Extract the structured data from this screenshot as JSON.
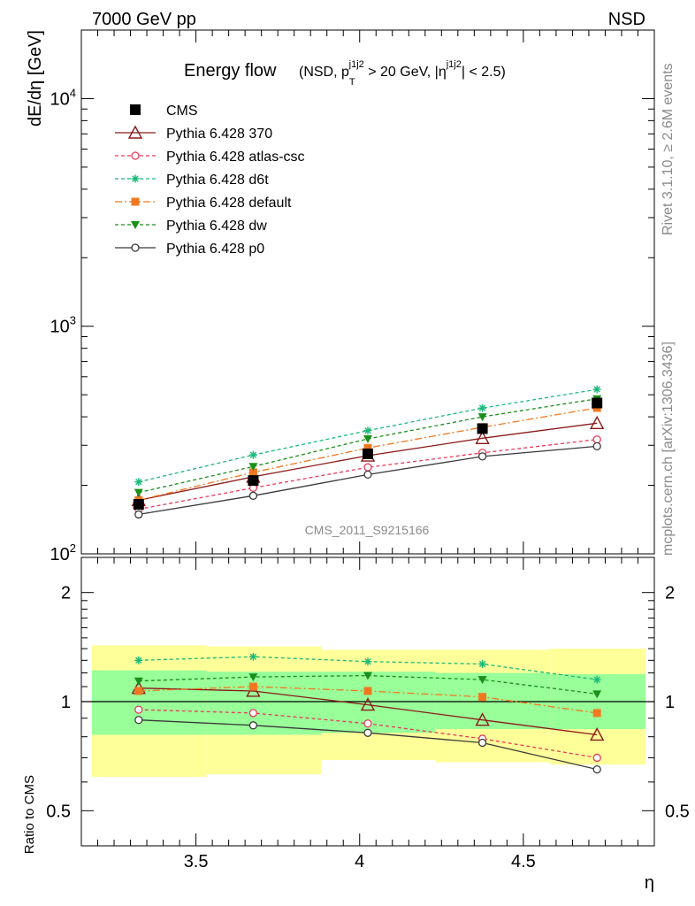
{
  "header": {
    "left": "7000 GeV pp",
    "right": "NSD",
    "title_main": "Energy flow",
    "title_detail": "(NSD, p_T^{j1j2} > 20 GeV, |η^{j1j2}| < 2.5)",
    "watermark": "CMS_2011_S9215166",
    "side_rivet": "Rivet 3.1.10, ≥ 2.6M events",
    "side_mcplots": "mcplots.cern.ch [arXiv:1306.3436]"
  },
  "chart_data": [
    {
      "type": "line",
      "panel": "main",
      "xlabel": "η",
      "ylabel": "dE/dη [GeV]",
      "yscale": "log",
      "xlim": [
        3.15,
        4.9
      ],
      "ylim": [
        100,
        20000
      ],
      "x": [
        3.325,
        3.675,
        4.025,
        4.375,
        4.725
      ],
      "x_edges": [
        3.15,
        3.5,
        3.85,
        4.2,
        4.55,
        4.9
      ],
      "yticks": [
        100,
        1000,
        10000
      ],
      "ytick_labels": [
        "10^2",
        "10^3",
        "10^4"
      ],
      "legend_position": "top-left",
      "series": [
        {
          "name": "CMS",
          "values": [
            165,
            210,
            275,
            355,
            460
          ],
          "color": "#000000",
          "marker": "square",
          "dash": "none"
        },
        {
          "name": "Pythia 6.428 370",
          "values": [
            172,
            218,
            270,
            322,
            375
          ],
          "color": "#8b1a1a",
          "marker": "triangle-open",
          "dash": "none"
        },
        {
          "name": "Pythia 6.428 atlas-csc",
          "values": [
            157,
            195,
            240,
            278,
            318
          ],
          "color": "#e8395a",
          "marker": "circle-open",
          "dash": "4,3"
        },
        {
          "name": "Pythia 6.428 d6t",
          "values": [
            207,
            272,
            348,
            437,
            528
          ],
          "color": "#1ab97a",
          "marker": "star",
          "dash": "4,3"
        },
        {
          "name": "Pythia 6.428 default",
          "values": [
            172,
            228,
            292,
            360,
            438
          ],
          "color": "#f07820",
          "marker": "square-small",
          "dash": "8,3,2,3"
        },
        {
          "name": "Pythia 6.428 dw",
          "values": [
            186,
            242,
            320,
            400,
            480
          ],
          "color": "#1a8f1a",
          "marker": "triangle-down",
          "dash": "4,3"
        },
        {
          "name": "Pythia 6.428 p0",
          "values": [
            149,
            180,
            223,
            268,
            297
          ],
          "color": "#3a3a3a",
          "marker": "circle-open",
          "dash": "none"
        }
      ]
    },
    {
      "type": "line",
      "panel": "ratio",
      "ylabel": "Ratio to CMS",
      "ylim": [
        0.4,
        2.5
      ],
      "yscale": "log",
      "yticks": [
        0.5,
        1,
        2
      ],
      "ytick_labels": [
        "0.5",
        "1",
        "2"
      ],
      "xticks": [
        3.5,
        4,
        4.5
      ],
      "xtick_labels": [
        "3.5",
        "4",
        "4.5"
      ],
      "bands": {
        "x_edges": [
          3.15,
          3.5,
          3.85,
          4.2,
          4.55,
          4.9
        ],
        "yellow_low": [
          0.62,
          0.63,
          0.69,
          0.68,
          0.67
        ],
        "yellow_high": [
          1.43,
          1.42,
          1.39,
          1.39,
          1.4
        ],
        "green_low": [
          0.81,
          0.81,
          0.82,
          0.84,
          0.84
        ],
        "green_high": [
          1.22,
          1.21,
          1.21,
          1.2,
          1.19
        ]
      },
      "series": [
        {
          "name": "Pythia 6.428 370",
          "values": [
            1.09,
            1.07,
            0.98,
            0.89,
            0.81
          ]
        },
        {
          "name": "Pythia 6.428 atlas-csc",
          "values": [
            0.95,
            0.93,
            0.87,
            0.79,
            0.7
          ]
        },
        {
          "name": "Pythia 6.428 d6t",
          "values": [
            1.3,
            1.33,
            1.29,
            1.27,
            1.15
          ]
        },
        {
          "name": "Pythia 6.428 default",
          "values": [
            1.07,
            1.1,
            1.07,
            1.03,
            0.93
          ]
        },
        {
          "name": "Pythia 6.428 dw",
          "values": [
            1.14,
            1.17,
            1.18,
            1.15,
            1.05
          ]
        },
        {
          "name": "Pythia 6.428 p0",
          "values": [
            0.89,
            0.86,
            0.82,
            0.77,
            0.65
          ]
        }
      ]
    }
  ]
}
